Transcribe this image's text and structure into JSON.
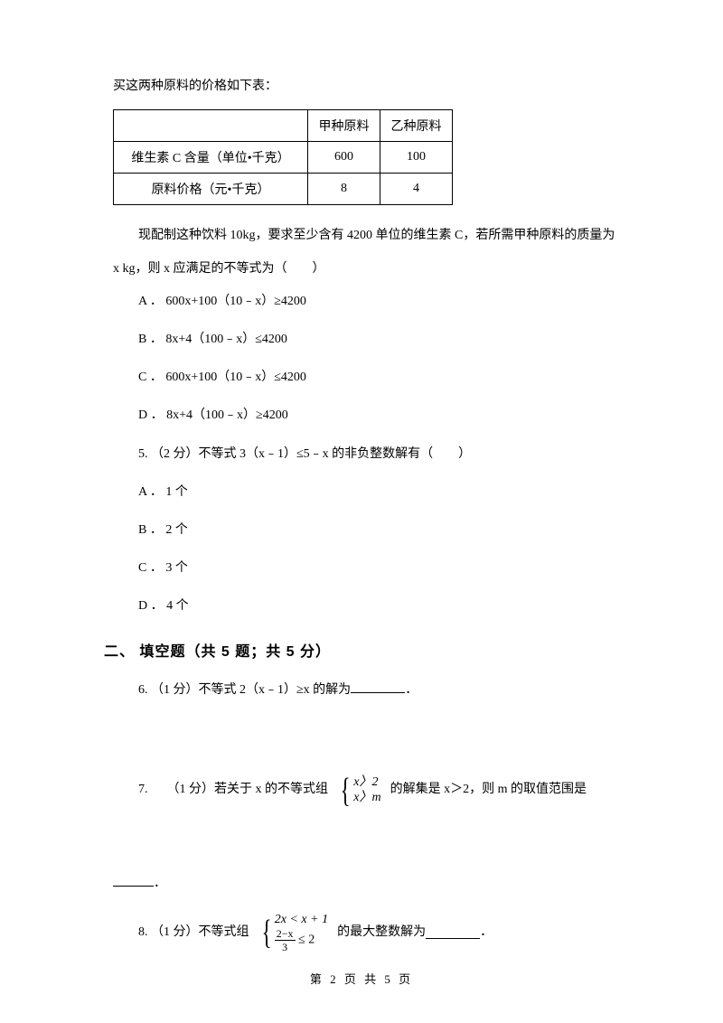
{
  "intro": "买这两种原料的价格如下表：",
  "table": {
    "header": {
      "col2": "甲种原料",
      "col3": "乙种原料"
    },
    "row1": {
      "label": "维生素 C 含量（单位•千克）",
      "v1": "600",
      "v2": "100"
    },
    "row2": {
      "label": "原料价格（元•千克）",
      "v1": "8",
      "v2": "4"
    }
  },
  "desc1": "现配制这种饮料 10kg，要求至少含有 4200 单位的维生素 C，若所需甲种原料的质量为",
  "desc2": "x kg，则 x 应满足的不等式为（　　）",
  "q4": {
    "A": "A ． 600x+100（10﹣x）≥4200",
    "B": "B ． 8x+4（100﹣x）≤4200",
    "C": "C ． 600x+100（10﹣x）≤4200",
    "D": "D ． 8x+4（100﹣x）≥4200"
  },
  "q5": {
    "stem": "5.  （2 分）不等式 3（x﹣1）≤5﹣x 的非负整数解有（　　）",
    "A": "A ． 1 个",
    "B": "B ． 2 个",
    "C": "C ． 3 个",
    "D": "D ． 4 个"
  },
  "section2": "二、 填空题（共 5 题；共 5 分）",
  "q6": {
    "pre": "6.  （1 分）不等式 2（x﹣1）≥x 的解为",
    "post": "．"
  },
  "q7": {
    "pre1": "7. 　 （1 分）若关于 x 的不等式组",
    "sys_row1": "x〉2",
    "sys_row2": "x〉m",
    "mid": "的解集是 x＞2，则 m 的取值范围是",
    "post": "．"
  },
  "q8": {
    "pre": "8.  （1 分）不等式组",
    "sys_row1": "2x < x + 1",
    "frac_num": "2−x",
    "frac_den": "3",
    "frac_tail": " ≤ 2",
    "mid": "的最大整数解为",
    "post": "．"
  },
  "footer": "第 2 页 共 5 页",
  "colors": {
    "text": "#000000",
    "bg": "#ffffff",
    "border": "#000000"
  }
}
